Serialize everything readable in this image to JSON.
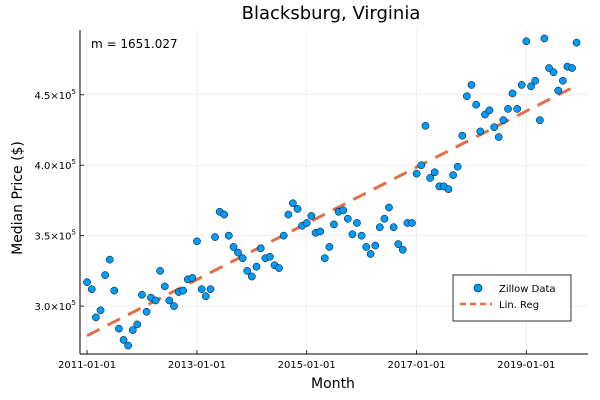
{
  "chart_data": {
    "type": "scatter",
    "title": "Blacksburg, Virginia",
    "xlabel": "Month",
    "ylabel": "Median Price ($)",
    "annotation": "m = 1651.027",
    "xlim": [
      "2010-11-15",
      "2020-02-15"
    ],
    "ylim": [
      266000,
      496000
    ],
    "x_ticks": [
      "2011-01-01",
      "2013-01-01",
      "2015-01-01",
      "2017-01-01",
      "2019-01-01"
    ],
    "y_ticks": [
      {
        "value": 300000,
        "mantissa": "3.0×10",
        "exponent": "5"
      },
      {
        "value": 350000,
        "mantissa": "3.5×10",
        "exponent": "5"
      },
      {
        "value": 400000,
        "mantissa": "4.0×10",
        "exponent": "5"
      },
      {
        "value": 450000,
        "mantissa": "4.5×10",
        "exponent": "5"
      }
    ],
    "grid": true,
    "legend_position": "bottom-right",
    "colors": {
      "points": "#009AF9",
      "regression": "#E26F46"
    },
    "series": [
      {
        "name": "Zillow Data",
        "kind": "scatter",
        "points": [
          [
            "2011-01-01",
            317000
          ],
          [
            "2011-02-01",
            312000
          ],
          [
            "2011-03-01",
            292000
          ],
          [
            "2011-04-01",
            297000
          ],
          [
            "2011-05-01",
            322000
          ],
          [
            "2011-06-01",
            333000
          ],
          [
            "2011-07-01",
            311000
          ],
          [
            "2011-08-01",
            284000
          ],
          [
            "2011-09-01",
            276000
          ],
          [
            "2011-10-01",
            272000
          ],
          [
            "2011-11-01",
            283000
          ],
          [
            "2011-12-01",
            287000
          ],
          [
            "2012-01-01",
            308000
          ],
          [
            "2012-02-01",
            296000
          ],
          [
            "2012-03-01",
            306000
          ],
          [
            "2012-04-01",
            304000
          ],
          [
            "2012-05-01",
            325000
          ],
          [
            "2012-06-01",
            314000
          ],
          [
            "2012-07-01",
            304000
          ],
          [
            "2012-08-01",
            300000
          ],
          [
            "2012-09-01",
            310000
          ],
          [
            "2012-10-01",
            311000
          ],
          [
            "2012-11-01",
            319000
          ],
          [
            "2012-12-01",
            320000
          ],
          [
            "2013-01-01",
            346000
          ],
          [
            "2013-02-01",
            312000
          ],
          [
            "2013-03-01",
            307000
          ],
          [
            "2013-04-01",
            312000
          ],
          [
            "2013-05-01",
            349000
          ],
          [
            "2013-06-01",
            367000
          ],
          [
            "2013-07-01",
            365000
          ],
          [
            "2013-08-01",
            350000
          ],
          [
            "2013-09-01",
            342000
          ],
          [
            "2013-10-01",
            338000
          ],
          [
            "2013-11-01",
            334000
          ],
          [
            "2013-12-01",
            325000
          ],
          [
            "2014-01-01",
            321000
          ],
          [
            "2014-02-01",
            328000
          ],
          [
            "2014-03-01",
            341000
          ],
          [
            "2014-04-01",
            334000
          ],
          [
            "2014-05-01",
            335000
          ],
          [
            "2014-06-01",
            329000
          ],
          [
            "2014-07-01",
            327000
          ],
          [
            "2014-08-01",
            350000
          ],
          [
            "2014-09-01",
            365000
          ],
          [
            "2014-10-01",
            373000
          ],
          [
            "2014-11-01",
            369000
          ],
          [
            "2014-12-01",
            357000
          ],
          [
            "2015-01-01",
            359000
          ],
          [
            "2015-02-01",
            364000
          ],
          [
            "2015-03-01",
            352000
          ],
          [
            "2015-04-01",
            353000
          ],
          [
            "2015-05-01",
            334000
          ],
          [
            "2015-06-01",
            342000
          ],
          [
            "2015-07-01",
            358000
          ],
          [
            "2015-08-01",
            367000
          ],
          [
            "2015-09-01",
            368000
          ],
          [
            "2015-10-01",
            362000
          ],
          [
            "2015-11-01",
            351000
          ],
          [
            "2015-12-01",
            359000
          ],
          [
            "2016-01-01",
            350000
          ],
          [
            "2016-02-01",
            342000
          ],
          [
            "2016-03-01",
            337000
          ],
          [
            "2016-04-01",
            343000
          ],
          [
            "2016-05-01",
            356000
          ],
          [
            "2016-06-01",
            362000
          ],
          [
            "2016-07-01",
            370000
          ],
          [
            "2016-08-01",
            356000
          ],
          [
            "2016-09-01",
            344000
          ],
          [
            "2016-10-01",
            340000
          ],
          [
            "2016-11-01",
            359000
          ],
          [
            "2016-12-01",
            359000
          ],
          [
            "2017-01-01",
            394000
          ],
          [
            "2017-02-01",
            400000
          ],
          [
            "2017-03-01",
            428000
          ],
          [
            "2017-04-01",
            391000
          ],
          [
            "2017-05-01",
            395000
          ],
          [
            "2017-06-01",
            385000
          ],
          [
            "2017-07-01",
            385000
          ],
          [
            "2017-08-01",
            383000
          ],
          [
            "2017-09-01",
            393000
          ],
          [
            "2017-10-01",
            399000
          ],
          [
            "2017-11-01",
            421000
          ],
          [
            "2017-12-01",
            449000
          ],
          [
            "2018-01-01",
            457000
          ],
          [
            "2018-02-01",
            443000
          ],
          [
            "2018-03-01",
            424000
          ],
          [
            "2018-04-01",
            436000
          ],
          [
            "2018-05-01",
            439000
          ],
          [
            "2018-06-01",
            427000
          ],
          [
            "2018-07-01",
            420000
          ],
          [
            "2018-08-01",
            432000
          ],
          [
            "2018-09-01",
            440000
          ],
          [
            "2018-10-01",
            451000
          ],
          [
            "2018-11-01",
            440000
          ],
          [
            "2018-12-01",
            457000
          ],
          [
            "2019-01-01",
            488000
          ],
          [
            "2019-02-01",
            456000
          ],
          [
            "2019-03-01",
            460000
          ],
          [
            "2019-04-01",
            432000
          ],
          [
            "2019-05-01",
            490000
          ],
          [
            "2019-06-01",
            469000
          ],
          [
            "2019-07-01",
            466000
          ],
          [
            "2019-08-01",
            453000
          ],
          [
            "2019-09-01",
            460000
          ],
          [
            "2019-10-01",
            470000
          ],
          [
            "2019-11-01",
            469000
          ],
          [
            "2019-12-01",
            487000
          ]
        ]
      },
      {
        "name": "Lin. Reg",
        "kind": "line",
        "style": "dashed",
        "points": [
          [
            "2011-01-01",
            279000
          ],
          [
            "2019-11-01",
            455000
          ]
        ]
      }
    ]
  }
}
